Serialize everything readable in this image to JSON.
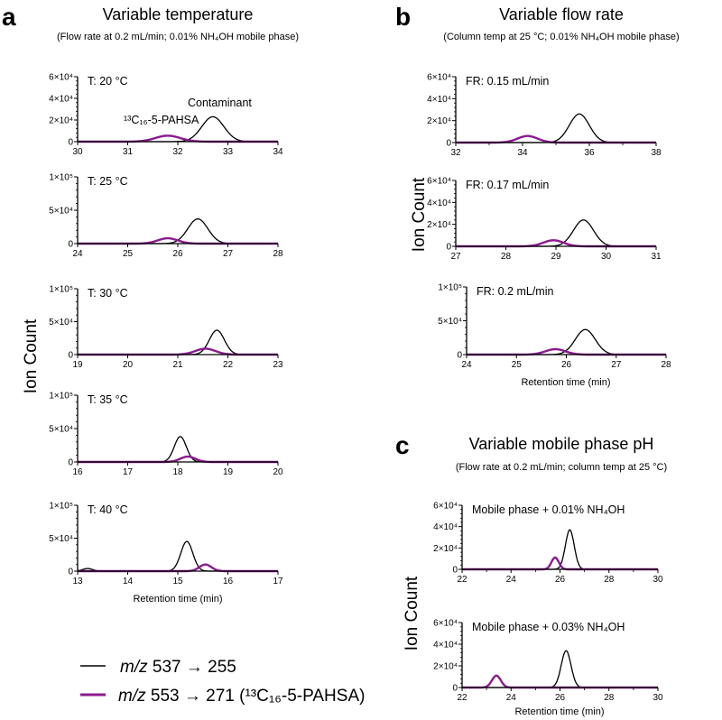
{
  "panels_text": {
    "a": {
      "letter": "a",
      "title": "Variable temperature",
      "subtitle": "(Flow rate at 0.2 mL/min; 0.01% NH₄OH mobile phase)",
      "ylabel": "Ion Count",
      "xlabel": "Retention time (min)"
    },
    "b": {
      "letter": "b",
      "title": "Variable flow rate",
      "subtitle": "(Column temp at 25 °C; 0.01% NH₄OH mobile phase)",
      "ylabel": "Ion Count",
      "xlabel": "Retention time (min)"
    },
    "c": {
      "letter": "c",
      "title": "Variable mobile phase pH",
      "subtitle": "(Flow rate at 0.2 mL/min; column temp at 25 °C)",
      "ylabel": "Ion Count",
      "xlabel": "Retention time (min)"
    }
  },
  "legend": [
    {
      "prefix": "m/z",
      "text": " 537 → 255",
      "color": "#000000"
    },
    {
      "prefix": "m/z",
      "text": " 553 → 271 (¹³C₁₆-5-PAHSA)",
      "color": "#8B1A8F"
    }
  ],
  "colors": {
    "contaminant": "#000000",
    "pahsa": "#8B1A8F"
  },
  "chart_data": [
    {
      "type": "line",
      "group": "a",
      "label": "T: 20 °C",
      "xlim": [
        30,
        34
      ],
      "xticks": [
        30,
        31,
        32,
        33,
        34
      ],
      "ylim": [
        0,
        60000
      ],
      "yticks": [
        0,
        20000,
        40000,
        60000
      ],
      "ytick_labels": [
        "0",
        "2×10⁴",
        "4×10⁴",
        "6×10⁴"
      ],
      "annotations": [
        "Contaminant",
        "¹³C₁₆-5-PAHSA"
      ],
      "series": [
        {
          "key": "contaminant",
          "peaks": [
            {
              "rt": 32.7,
              "height": 23000,
              "sd": 0.22
            }
          ]
        },
        {
          "key": "pahsa",
          "peaks": [
            {
              "rt": 31.8,
              "height": 5500,
              "sd": 0.25
            }
          ]
        }
      ]
    },
    {
      "type": "line",
      "group": "a",
      "label": "T: 25 °C",
      "xlim": [
        24,
        28
      ],
      "xticks": [
        24,
        25,
        26,
        27,
        28
      ],
      "ylim": [
        0,
        100000
      ],
      "yticks": [
        0,
        50000,
        100000
      ],
      "ytick_labels": [
        "0",
        "5×10⁴",
        "1×10⁵"
      ],
      "series": [
        {
          "key": "contaminant",
          "peaks": [
            {
              "rt": 26.4,
              "height": 37000,
              "sd": 0.2
            }
          ]
        },
        {
          "key": "pahsa",
          "peaks": [
            {
              "rt": 25.8,
              "height": 8000,
              "sd": 0.2
            }
          ]
        }
      ]
    },
    {
      "type": "line",
      "group": "a",
      "label": "T: 30 °C",
      "xlim": [
        19,
        23
      ],
      "xticks": [
        19,
        20,
        21,
        22,
        23
      ],
      "ylim": [
        0,
        100000
      ],
      "yticks": [
        0,
        50000,
        100000
      ],
      "ytick_labels": [
        "0",
        "5×10⁴",
        "1×10⁵"
      ],
      "series": [
        {
          "key": "contaminant",
          "peaks": [
            {
              "rt": 21.78,
              "height": 37000,
              "sd": 0.15
            }
          ]
        },
        {
          "key": "pahsa",
          "peaks": [
            {
              "rt": 21.55,
              "height": 9000,
              "sd": 0.2
            }
          ]
        }
      ]
    },
    {
      "type": "line",
      "group": "a",
      "label": "T: 35 °C",
      "xlim": [
        16,
        20
      ],
      "xticks": [
        16,
        17,
        18,
        19,
        20
      ],
      "ylim": [
        0,
        100000
      ],
      "yticks": [
        0,
        50000,
        100000
      ],
      "ytick_labels": [
        "0",
        "5×10⁴",
        "1×10⁵"
      ],
      "series": [
        {
          "key": "contaminant",
          "peaks": [
            {
              "rt": 18.05,
              "height": 38000,
              "sd": 0.12
            }
          ]
        },
        {
          "key": "pahsa",
          "peaks": [
            {
              "rt": 18.2,
              "height": 8000,
              "sd": 0.15
            }
          ]
        }
      ]
    },
    {
      "type": "line",
      "group": "a",
      "label": "T: 40 °C",
      "xlim": [
        13,
        17
      ],
      "xticks": [
        13,
        14,
        15,
        16,
        17
      ],
      "ylim": [
        0,
        100000
      ],
      "yticks": [
        0,
        50000,
        100000
      ],
      "ytick_labels": [
        "0",
        "5×10⁴",
        "1×10⁵"
      ],
      "series": [
        {
          "key": "contaminant",
          "peaks": [
            {
              "rt": 15.18,
              "height": 45000,
              "sd": 0.12
            },
            {
              "rt": 13.2,
              "height": 4000,
              "sd": 0.1
            }
          ]
        },
        {
          "key": "pahsa",
          "peaks": [
            {
              "rt": 15.55,
              "height": 10000,
              "sd": 0.12
            }
          ]
        }
      ]
    },
    {
      "type": "line",
      "group": "b",
      "label": "FR: 0.15 mL/min",
      "xlim": [
        32,
        38
      ],
      "xticks": [
        32,
        34,
        36,
        38
      ],
      "ylim": [
        0,
        60000
      ],
      "yticks": [
        0,
        20000,
        40000,
        60000
      ],
      "ytick_labels": [
        "0",
        "2×10⁴",
        "4×10⁴",
        "6×10⁴"
      ],
      "series": [
        {
          "key": "contaminant",
          "peaks": [
            {
              "rt": 35.7,
              "height": 26000,
              "sd": 0.3
            }
          ]
        },
        {
          "key": "pahsa",
          "peaks": [
            {
              "rt": 34.15,
              "height": 6000,
              "sd": 0.3
            }
          ]
        }
      ]
    },
    {
      "type": "line",
      "group": "b",
      "label": "FR: 0.17 mL/min",
      "xlim": [
        27,
        31
      ],
      "xticks": [
        27,
        28,
        29,
        30,
        31
      ],
      "ylim": [
        0,
        60000
      ],
      "yticks": [
        0,
        20000,
        40000,
        60000
      ],
      "ytick_labels": [
        "0",
        "2×10⁴",
        "4×10⁴",
        "6×10⁴"
      ],
      "series": [
        {
          "key": "contaminant",
          "peaks": [
            {
              "rt": 29.55,
              "height": 24000,
              "sd": 0.2
            }
          ]
        },
        {
          "key": "pahsa",
          "peaks": [
            {
              "rt": 28.95,
              "height": 5500,
              "sd": 0.2
            }
          ]
        }
      ]
    },
    {
      "type": "line",
      "group": "b",
      "label": "FR: 0.2 mL/min",
      "xlim": [
        24,
        28
      ],
      "xticks": [
        24,
        25,
        26,
        27,
        28
      ],
      "ylim": [
        0,
        100000
      ],
      "yticks": [
        0,
        50000,
        100000
      ],
      "ytick_labels": [
        "0",
        "5×10⁴",
        "1×10⁵"
      ],
      "series": [
        {
          "key": "contaminant",
          "peaks": [
            {
              "rt": 26.38,
              "height": 37000,
              "sd": 0.2
            }
          ]
        },
        {
          "key": "pahsa",
          "peaks": [
            {
              "rt": 25.78,
              "height": 8000,
              "sd": 0.2
            }
          ]
        }
      ]
    },
    {
      "type": "line",
      "group": "c",
      "label": "Mobile phase + 0.01% NH₄OH",
      "xlim": [
        22,
        30
      ],
      "xticks": [
        22,
        24,
        26,
        28,
        30
      ],
      "ylim": [
        0,
        60000
      ],
      "yticks": [
        0,
        20000,
        40000,
        60000
      ],
      "ytick_labels": [
        "0",
        "2×10⁴",
        "4×10⁴",
        "6×10⁴"
      ],
      "series": [
        {
          "key": "contaminant",
          "peaks": [
            {
              "rt": 26.4,
              "height": 37000,
              "sd": 0.18
            }
          ]
        },
        {
          "key": "pahsa",
          "peaks": [
            {
              "rt": 25.8,
              "height": 11000,
              "sd": 0.15
            }
          ]
        }
      ]
    },
    {
      "type": "line",
      "group": "c",
      "label": "Mobile phase + 0.03% NH₄OH",
      "xlim": [
        22,
        30
      ],
      "xticks": [
        22,
        24,
        26,
        28,
        30
      ],
      "ylim": [
        0,
        60000
      ],
      "yticks": [
        0,
        20000,
        40000,
        60000
      ],
      "ytick_labels": [
        "0",
        "2×10⁴",
        "4×10⁴",
        "6×10⁴"
      ],
      "series": [
        {
          "key": "contaminant",
          "peaks": [
            {
              "rt": 26.25,
              "height": 34000,
              "sd": 0.2
            }
          ]
        },
        {
          "key": "pahsa",
          "peaks": [
            {
              "rt": 23.4,
              "height": 11000,
              "sd": 0.18
            }
          ]
        }
      ]
    }
  ]
}
